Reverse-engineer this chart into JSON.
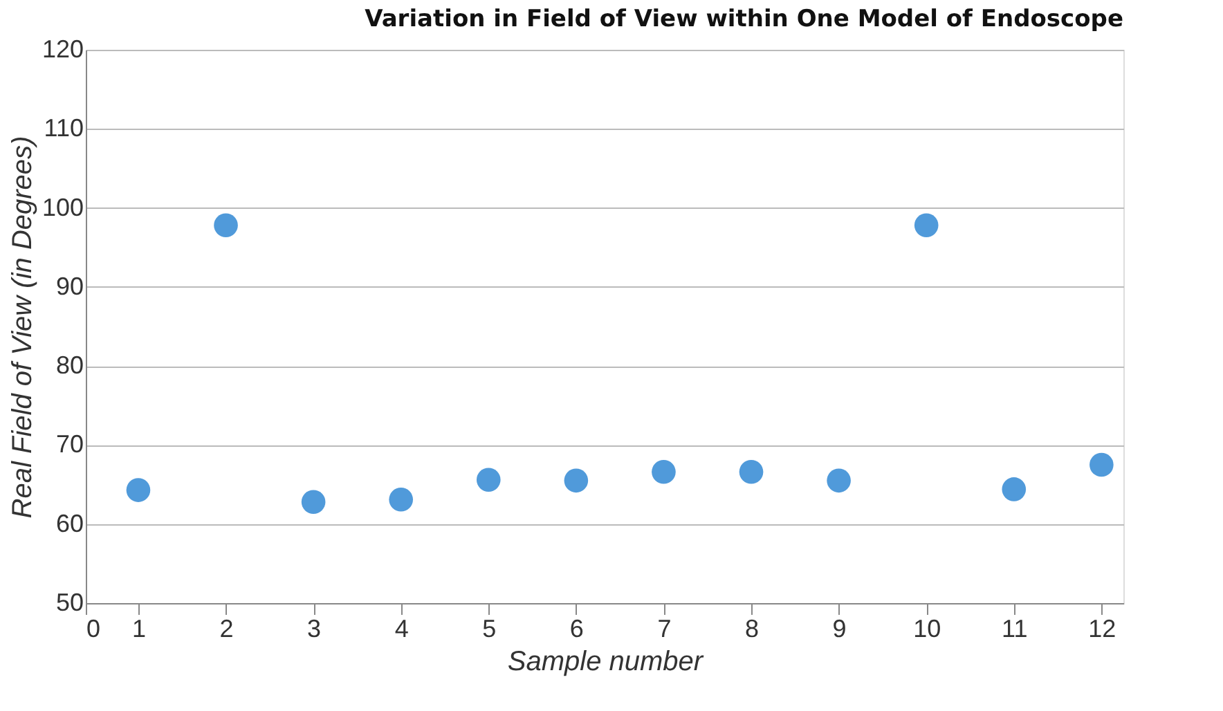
{
  "chart_data": {
    "type": "scatter",
    "title": "Variation in Field of View within One Model of Endoscope",
    "xlabel": "Sample number",
    "ylabel": "Real Field of View (in Degrees)",
    "x": [
      1,
      2,
      3,
      4,
      5,
      6,
      7,
      8,
      9,
      10,
      11,
      12
    ],
    "series": [
      {
        "color": "#3d8fd6",
        "values": [
          64.3,
          97.8,
          62.8,
          63.1,
          65.6,
          65.5,
          66.6,
          66.6,
          65.5,
          97.8,
          64.4,
          67.5
        ]
      }
    ],
    "xlim": [
      0.4,
      12.25
    ],
    "xticks": [
      {
        "value": 0.4,
        "label": "0"
      },
      1,
      2,
      3,
      4,
      5,
      6,
      7,
      8,
      9,
      10,
      11,
      12
    ],
    "ylim": [
      50,
      120
    ],
    "yticks": [
      50,
      60,
      70,
      80,
      90,
      100,
      110,
      120
    ],
    "grid": "y",
    "marker": "circle"
  }
}
